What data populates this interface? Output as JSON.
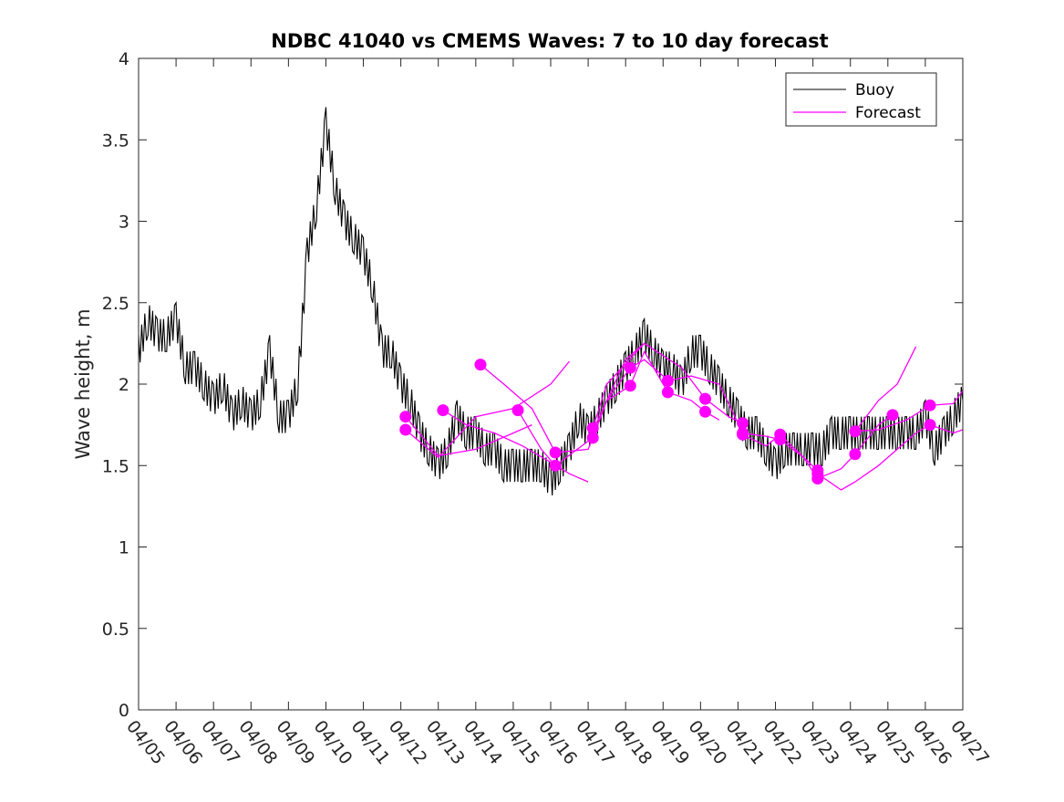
{
  "chart_data": {
    "type": "line",
    "title": "NDBC 41040 vs CMEMS Waves: 7 to 10 day forecast",
    "xlabel": "",
    "ylabel": "Wave height, m",
    "ylim": [
      0,
      4
    ],
    "yticks": [
      0,
      0.5,
      1,
      1.5,
      2,
      2.5,
      3,
      3.5,
      4
    ],
    "ytick_labels": [
      "0",
      "0.5",
      "1",
      "1.5",
      "2",
      "2.5",
      "3",
      "3.5",
      "4"
    ],
    "xlim": [
      "04/05",
      "04/27"
    ],
    "xtick_labels": [
      "04/05",
      "04/06",
      "04/07",
      "04/08",
      "04/09",
      "04/10",
      "04/11",
      "04/12",
      "04/13",
      "04/14",
      "04/15",
      "04/16",
      "04/17",
      "04/18",
      "04/19",
      "04/20",
      "04/21",
      "04/22",
      "04/23",
      "04/24",
      "04/25",
      "04/26",
      "04/27"
    ],
    "grid": false,
    "legend_position": "top-right",
    "legend": [
      "Buoy",
      "Forecast"
    ],
    "buoy": {
      "name": "Buoy",
      "color": "#000000",
      "x": [
        "04/05 00:00",
        "04/05 06:00",
        "04/05 12:00",
        "04/05 18:00",
        "04/06 00:00",
        "04/06 06:00",
        "04/06 12:00",
        "04/06 18:00",
        "04/07 00:00",
        "04/07 06:00",
        "04/07 12:00",
        "04/07 18:00",
        "04/08 00:00",
        "04/08 06:00",
        "04/08 12:00",
        "04/08 18:00",
        "04/09 00:00",
        "04/09 06:00",
        "04/09 12:00",
        "04/09 18:00",
        "04/10 00:00",
        "04/10 06:00",
        "04/10 12:00",
        "04/10 18:00",
        "04/11 00:00",
        "04/11 06:00",
        "04/11 12:00",
        "04/11 18:00",
        "04/12 00:00",
        "04/12 06:00",
        "04/12 12:00",
        "04/12 18:00",
        "04/13 00:00",
        "04/13 06:00",
        "04/13 12:00",
        "04/13 18:00",
        "04/14 00:00",
        "04/14 06:00",
        "04/14 12:00",
        "04/14 18:00",
        "04/15 00:00",
        "04/15 06:00",
        "04/15 12:00",
        "04/15 18:00",
        "04/16 00:00",
        "04/16 06:00",
        "04/16 12:00",
        "04/16 18:00",
        "04/17 00:00",
        "04/17 06:00",
        "04/17 12:00",
        "04/17 18:00",
        "04/18 00:00",
        "04/18 06:00",
        "04/18 12:00",
        "04/18 18:00",
        "04/19 00:00",
        "04/19 06:00",
        "04/19 12:00",
        "04/19 18:00",
        "04/20 00:00",
        "04/20 06:00",
        "04/20 12:00",
        "04/20 18:00",
        "04/21 00:00",
        "04/21 06:00",
        "04/21 12:00",
        "04/21 18:00",
        "04/22 00:00",
        "04/22 06:00",
        "04/22 12:00",
        "04/22 18:00",
        "04/23 00:00",
        "04/23 06:00",
        "04/23 12:00",
        "04/23 18:00",
        "04/24 00:00",
        "04/24 06:00",
        "04/24 12:00",
        "04/24 18:00",
        "04/25 00:00",
        "04/25 06:00",
        "04/25 12:00",
        "04/25 18:00",
        "04/26 00:00",
        "04/26 06:00",
        "04/26 12:00",
        "04/26 18:00",
        "04/27 00:00"
      ],
      "y": [
        2.2,
        2.4,
        2.3,
        2.3,
        2.4,
        2.1,
        2.1,
        2.0,
        1.9,
        2.0,
        1.8,
        1.9,
        1.8,
        1.9,
        2.2,
        1.8,
        1.8,
        2.0,
        2.8,
        3.1,
        3.6,
        3.2,
        3.0,
        2.9,
        2.8,
        2.6,
        2.2,
        2.2,
        2.0,
        1.9,
        1.7,
        1.6,
        1.5,
        1.6,
        1.8,
        1.7,
        1.7,
        1.6,
        1.6,
        1.5,
        1.5,
        1.5,
        1.5,
        1.5,
        1.4,
        1.5,
        1.6,
        1.8,
        1.7,
        1.8,
        1.9,
        2.0,
        2.1,
        2.2,
        2.3,
        2.2,
        2.1,
        2.1,
        2.0,
        2.2,
        2.2,
        2.1,
        2.0,
        1.9,
        1.8,
        1.7,
        1.7,
        1.6,
        1.5,
        1.6,
        1.6,
        1.6,
        1.6,
        1.6,
        1.7,
        1.7,
        1.7,
        1.7,
        1.7,
        1.7,
        1.7,
        1.7,
        1.7,
        1.7,
        1.8,
        1.6,
        1.7,
        1.8,
        1.9
      ]
    },
    "forecasts": [
      {
        "name": "Forecast",
        "color": "#ff00ff",
        "x": [
          "04/12 03:00",
          "04/13 00:00",
          "04/14 00:00",
          "04/15 00:00",
          "04/16 00:00",
          "04/16 12:00"
        ],
        "y": [
          1.72,
          1.55,
          1.8,
          1.85,
          2.0,
          2.14
        ],
        "marker_x": [
          "04/12 03:00"
        ],
        "marker_y": [
          1.72
        ]
      },
      {
        "name": "Forecast",
        "color": "#ff00ff",
        "x": [
          "04/12 03:00",
          "04/13 00:00",
          "04/14 00:00",
          "04/15 00:00",
          "04/15 12:00"
        ],
        "y": [
          1.8,
          1.56,
          1.6,
          1.7,
          1.75
        ],
        "marker_x": [
          "04/12 03:00"
        ],
        "marker_y": [
          1.8
        ]
      },
      {
        "name": "Forecast",
        "color": "#ff00ff",
        "x": [
          "04/13 03:00",
          "04/13 18:00",
          "04/14 12:00",
          "04/15 06:00",
          "04/16 00:00",
          "04/16 12:00",
          "04/17 00:00"
        ],
        "y": [
          1.84,
          1.75,
          1.7,
          1.62,
          1.52,
          1.45,
          1.4
        ],
        "marker_x": [
          "04/13 03:00"
        ],
        "marker_y": [
          1.84
        ]
      },
      {
        "name": "Forecast",
        "color": "#ff00ff",
        "x": [
          "04/14 03:00",
          "04/14 18:00",
          "04/15 12:00",
          "04/16 03:00",
          "04/17 00:00",
          "04/17 12:00",
          "04/18 00:00",
          "04/18 12:00"
        ],
        "y": [
          2.12,
          2.0,
          1.85,
          1.58,
          1.6,
          1.9,
          2.15,
          2.25
        ],
        "marker_x": [
          "04/14 03:00",
          "04/16 03:00"
        ],
        "marker_y": [
          2.12,
          1.58
        ]
      },
      {
        "name": "Forecast",
        "color": "#ff00ff",
        "x": [
          "04/15 03:00",
          "04/15 18:00",
          "04/16 03:00",
          "04/17 00:00",
          "04/17 12:00",
          "04/18 03:00",
          "04/18 12:00",
          "04/19 00:00",
          "04/19 06:00"
        ],
        "y": [
          1.84,
          1.6,
          1.5,
          1.65,
          1.9,
          2.1,
          2.15,
          2.05,
          2.02
        ],
        "marker_x": [
          "04/15 03:00",
          "04/16 03:00",
          "04/18 03:00",
          "04/19 03:00"
        ],
        "marker_y": [
          1.84,
          1.5,
          2.1,
          2.02
        ]
      },
      {
        "name": "Forecast",
        "color": "#ff00ff",
        "x": [
          "04/17 03:00",
          "04/17 12:00",
          "04/18 03:00",
          "04/18 12:00",
          "04/19 03:00",
          "04/19 18:00",
          "04/20 03:00",
          "04/20 12:00"
        ],
        "y": [
          1.67,
          1.9,
          1.99,
          2.2,
          1.95,
          1.9,
          1.83,
          1.78
        ],
        "marker_x": [
          "04/17 03:00",
          "04/18 03:00",
          "04/19 03:00",
          "04/20 03:00"
        ],
        "marker_y": [
          1.67,
          1.99,
          1.95,
          1.83
        ]
      },
      {
        "name": "Forecast",
        "color": "#ff00ff",
        "x": [
          "04/17 03:00",
          "04/17 12:00",
          "04/18 12:00",
          "04/19 12:00",
          "04/20 03:00",
          "04/20 18:00",
          "04/21 03:00"
        ],
        "y": [
          1.73,
          2.0,
          2.25,
          2.1,
          1.91,
          1.8,
          1.76
        ],
        "marker_x": [
          "04/17 03:00",
          "04/20 03:00",
          "04/21 03:00"
        ],
        "marker_y": [
          1.73,
          1.91,
          1.76
        ]
      },
      {
        "name": "Forecast",
        "color": "#ff00ff",
        "x": [
          "04/19 03:00",
          "04/19 18:00",
          "04/20 12:00",
          "04/21 03:00",
          "04/21 18:00",
          "04/22 03:00",
          "04/22 18:00",
          "04/23 03:00"
        ],
        "y": [
          2.02,
          2.05,
          2.0,
          1.7,
          1.68,
          1.66,
          1.55,
          1.47
        ],
        "marker_x": [
          "04/21 03:00",
          "04/22 03:00",
          "04/23 03:00"
        ],
        "marker_y": [
          1.7,
          1.66,
          1.47
        ]
      },
      {
        "name": "Forecast",
        "color": "#ff00ff",
        "x": [
          "04/21 03:00",
          "04/21 18:00",
          "04/22 03:00",
          "04/22 18:00",
          "04/23 03:00",
          "04/23 18:00",
          "04/24 03:00",
          "04/24 18:00",
          "04/25 03:00"
        ],
        "y": [
          1.69,
          1.62,
          1.69,
          1.55,
          1.42,
          1.48,
          1.57,
          1.75,
          1.81
        ],
        "marker_x": [
          "04/21 03:00",
          "04/22 03:00",
          "04/23 03:00",
          "04/24 03:00",
          "04/25 03:00"
        ],
        "marker_y": [
          1.69,
          1.69,
          1.42,
          1.57,
          1.81
        ]
      },
      {
        "name": "Forecast",
        "color": "#ff00ff",
        "x": [
          "04/23 03:00",
          "04/23 18:00",
          "04/24 03:00",
          "04/24 18:00",
          "04/25 06:00",
          "04/25 18:00",
          "04/26 03:00",
          "04/26 18:00",
          "04/27 00:00"
        ],
        "y": [
          1.45,
          1.35,
          1.4,
          1.5,
          1.6,
          1.7,
          1.75,
          1.7,
          1.72
        ],
        "marker_x": [
          "04/23 03:00",
          "04/26 03:00"
        ],
        "marker_y": [
          1.45,
          1.75
        ]
      },
      {
        "name": "Forecast",
        "color": "#ff00ff",
        "x": [
          "04/24 03:00",
          "04/24 18:00",
          "04/25 03:00",
          "04/25 12:00",
          "04/26 03:00",
          "04/26 18:00",
          "04/27 00:00"
        ],
        "y": [
          1.71,
          1.72,
          1.75,
          1.78,
          1.87,
          1.88,
          1.96
        ],
        "marker_x": [
          "04/24 03:00",
          "04/26 03:00"
        ],
        "marker_y": [
          1.71,
          1.87
        ]
      },
      {
        "name": "Forecast",
        "color": "#ff00ff",
        "x": [
          "04/24 03:00",
          "04/24 18:00",
          "04/25 06:00",
          "04/25 18:00"
        ],
        "y": [
          1.71,
          1.9,
          2.0,
          2.23
        ],
        "marker_x": [],
        "marker_y": []
      }
    ]
  }
}
